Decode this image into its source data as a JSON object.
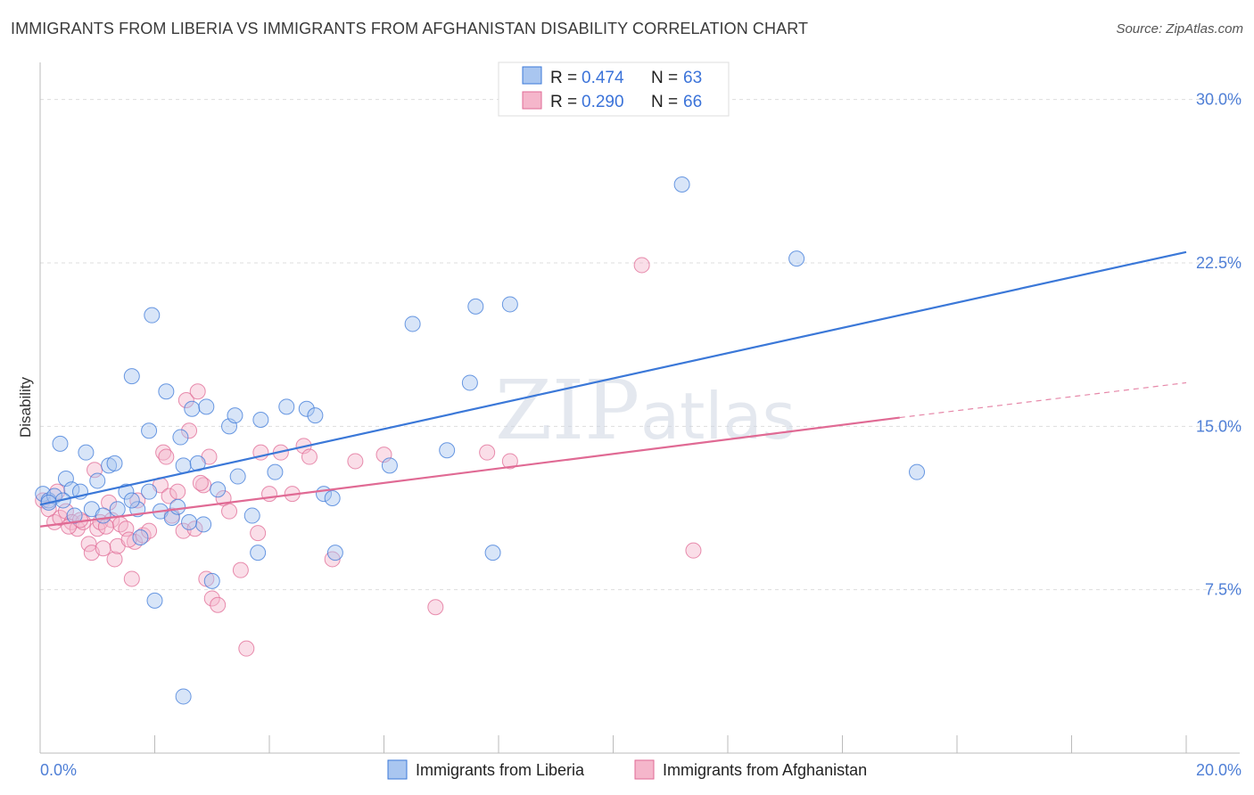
{
  "title": "IMMIGRANTS FROM LIBERIA VS IMMIGRANTS FROM AFGHANISTAN DISABILITY CORRELATION CHART",
  "source": "Source: ZipAtlas.com",
  "watermark": {
    "zip": "ZIP",
    "atlas": "atlas"
  },
  "colors": {
    "blue": "#3b78d8",
    "blue_fill": "#a9c6f0",
    "pink": "#e06a94",
    "pink_fill": "#f5b6cb",
    "grid": "#dddddd",
    "axis": "#bbbbbb",
    "tick_text": "#4f7fd6"
  },
  "chart_data": {
    "type": "scatter",
    "title": "IMMIGRANTS FROM LIBERIA VS IMMIGRANTS FROM AFGHANISTAN DISABILITY CORRELATION CHART",
    "ylabel": "Disability",
    "xlabel": "",
    "xlim": [
      0,
      20
    ],
    "ylim": [
      0,
      31.5
    ],
    "x_tick_labels": [
      {
        "value": 0,
        "label": "0.0%"
      },
      {
        "value": 20,
        "label": "20.0%"
      }
    ],
    "y_tick_labels": [
      {
        "value": 7.5,
        "label": "7.5%"
      },
      {
        "value": 15,
        "label": "15.0%"
      },
      {
        "value": 22.5,
        "label": "22.5%"
      },
      {
        "value": 30,
        "label": "30.0%"
      }
    ],
    "legend": [
      {
        "name": "Immigrants from Liberia",
        "r_label": "R =",
        "r": "0.474",
        "n_label": "N =",
        "n": "63"
      },
      {
        "name": "Immigrants from Afghanistan",
        "r_label": "R =",
        "r": "0.290",
        "n_label": "N =",
        "n": "66"
      }
    ],
    "series": [
      {
        "name": "Immigrants from Liberia",
        "color": "#3b78d8",
        "trend": {
          "x0": 0,
          "y0": 11.4,
          "x1": 20,
          "y1": 23.0
        },
        "points": [
          [
            0.05,
            11.9
          ],
          [
            0.15,
            11.6
          ],
          [
            0.25,
            11.8
          ],
          [
            0.35,
            14.2
          ],
          [
            0.45,
            12.6
          ],
          [
            0.55,
            12.1
          ],
          [
            0.7,
            12.0
          ],
          [
            0.8,
            13.8
          ],
          [
            0.9,
            11.2
          ],
          [
            1.0,
            12.5
          ],
          [
            1.1,
            10.9
          ],
          [
            1.2,
            13.2
          ],
          [
            1.3,
            13.3
          ],
          [
            1.35,
            11.2
          ],
          [
            1.5,
            12.0
          ],
          [
            1.6,
            17.3
          ],
          [
            1.7,
            11.2
          ],
          [
            1.75,
            9.9
          ],
          [
            1.9,
            14.8
          ],
          [
            1.95,
            20.1
          ],
          [
            2.1,
            11.1
          ],
          [
            2.2,
            16.6
          ],
          [
            2.3,
            10.8
          ],
          [
            2.4,
            11.3
          ],
          [
            2.45,
            14.5
          ],
          [
            2.5,
            13.2
          ],
          [
            2.65,
            15.8
          ],
          [
            2.75,
            13.3
          ],
          [
            2.85,
            10.5
          ],
          [
            2.9,
            15.9
          ],
          [
            3.1,
            12.1
          ],
          [
            3.3,
            15.0
          ],
          [
            3.4,
            15.5
          ],
          [
            3.45,
            12.7
          ],
          [
            3.7,
            10.9
          ],
          [
            3.8,
            9.2
          ],
          [
            3.85,
            15.3
          ],
          [
            4.1,
            12.9
          ],
          [
            4.3,
            15.9
          ],
          [
            4.65,
            15.8
          ],
          [
            4.8,
            15.5
          ],
          [
            4.95,
            11.9
          ],
          [
            5.1,
            11.7
          ],
          [
            5.15,
            9.2
          ],
          [
            6.1,
            13.2
          ],
          [
            6.5,
            19.7
          ],
          [
            7.1,
            13.9
          ],
          [
            7.5,
            17.0
          ],
          [
            7.6,
            20.5
          ],
          [
            7.9,
            9.2
          ],
          [
            8.2,
            20.6
          ],
          [
            11.2,
            26.1
          ],
          [
            13.2,
            22.7
          ],
          [
            15.3,
            12.9
          ],
          [
            2.0,
            7.0
          ],
          [
            3.0,
            7.9
          ],
          [
            2.5,
            2.6
          ],
          [
            1.6,
            11.6
          ],
          [
            0.6,
            10.9
          ],
          [
            0.4,
            11.6
          ],
          [
            1.9,
            12.0
          ],
          [
            2.6,
            10.6
          ],
          [
            0.15,
            11.5
          ]
        ]
      },
      {
        "name": "Immigrants from Afghanistan",
        "color": "#e06a94",
        "trend": {
          "x0": 0,
          "y0": 10.4,
          "x1": 15.0,
          "y1": 15.4,
          "dash_x1": 20,
          "dash_y1": 17.0
        },
        "points": [
          [
            0.05,
            11.6
          ],
          [
            0.15,
            11.2
          ],
          [
            0.25,
            10.6
          ],
          [
            0.35,
            10.8
          ],
          [
            0.45,
            11.1
          ],
          [
            0.55,
            10.6
          ],
          [
            0.65,
            10.3
          ],
          [
            0.75,
            10.6
          ],
          [
            0.85,
            9.6
          ],
          [
            0.9,
            9.2
          ],
          [
            1.0,
            10.3
          ],
          [
            1.05,
            10.6
          ],
          [
            1.1,
            9.4
          ],
          [
            1.2,
            11.5
          ],
          [
            1.25,
            10.7
          ],
          [
            1.3,
            8.9
          ],
          [
            1.35,
            9.5
          ],
          [
            1.4,
            10.5
          ],
          [
            1.5,
            10.3
          ],
          [
            1.6,
            8.0
          ],
          [
            1.65,
            9.7
          ],
          [
            1.7,
            11.6
          ],
          [
            1.8,
            10.0
          ],
          [
            1.9,
            10.2
          ],
          [
            2.1,
            12.3
          ],
          [
            2.15,
            13.8
          ],
          [
            2.25,
            11.8
          ],
          [
            2.3,
            10.9
          ],
          [
            2.4,
            12.0
          ],
          [
            2.5,
            10.2
          ],
          [
            2.55,
            16.2
          ],
          [
            2.6,
            14.8
          ],
          [
            2.7,
            10.3
          ],
          [
            2.75,
            16.6
          ],
          [
            2.85,
            12.3
          ],
          [
            2.9,
            8.0
          ],
          [
            3.0,
            7.1
          ],
          [
            3.1,
            6.8
          ],
          [
            3.2,
            11.7
          ],
          [
            3.3,
            11.1
          ],
          [
            3.5,
            8.4
          ],
          [
            3.6,
            4.8
          ],
          [
            3.8,
            10.1
          ],
          [
            3.85,
            13.8
          ],
          [
            4.0,
            11.9
          ],
          [
            4.2,
            13.8
          ],
          [
            4.4,
            11.9
          ],
          [
            4.6,
            14.1
          ],
          [
            4.7,
            13.6
          ],
          [
            5.1,
            8.9
          ],
          [
            5.5,
            13.4
          ],
          [
            6.0,
            13.7
          ],
          [
            6.9,
            6.7
          ],
          [
            7.8,
            13.8
          ],
          [
            8.2,
            13.4
          ],
          [
            10.5,
            22.4
          ],
          [
            11.4,
            9.3
          ],
          [
            2.8,
            12.4
          ],
          [
            2.95,
            13.6
          ],
          [
            0.3,
            12.0
          ],
          [
            0.5,
            10.4
          ],
          [
            0.95,
            13.0
          ],
          [
            1.55,
            9.8
          ],
          [
            2.2,
            13.6
          ],
          [
            0.7,
            10.7
          ],
          [
            1.15,
            10.4
          ]
        ]
      }
    ]
  }
}
